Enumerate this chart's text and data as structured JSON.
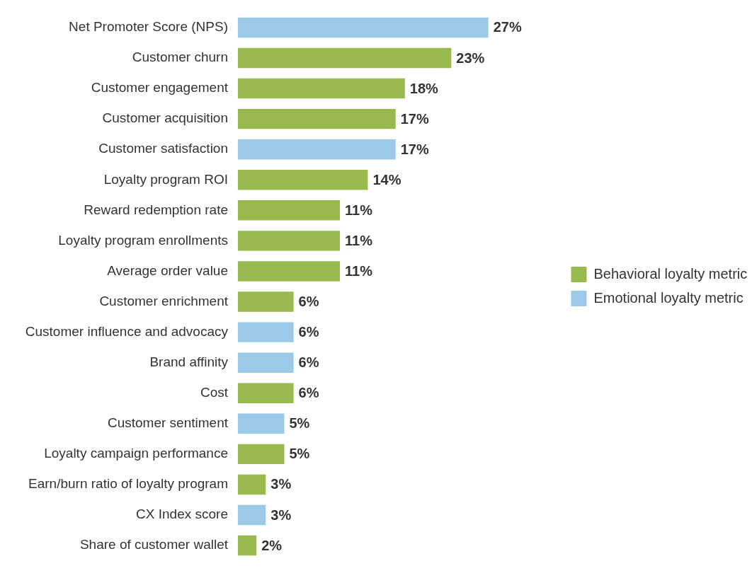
{
  "chart_data": {
    "type": "bar",
    "orientation": "horizontal",
    "stacked": true,
    "categories": [
      "Net Promoter Score (NPS)",
      "Customer churn",
      "Customer engagement",
      "Customer acquisition",
      "Customer satisfaction",
      "Loyalty program ROI",
      "Reward redemption rate",
      "Loyalty program enrollments",
      "Average order value",
      "Customer enrichment",
      "Customer influence and advocacy",
      "Brand affinity",
      "Cost",
      "Customer sentiment",
      "Loyalty campaign performance",
      "Earn/burn ratio of loyalty program",
      "CX Index score",
      "Share of customer wallet"
    ],
    "series": [
      {
        "name": "Behavioral loyalty metric",
        "color": "#97b94e",
        "values": [
          null,
          23,
          18,
          17,
          null,
          14,
          11,
          11,
          11,
          6,
          null,
          null,
          6,
          null,
          5,
          3,
          null,
          2
        ],
        "value_labels": [
          null,
          "23%",
          "18%",
          "17%",
          null,
          "14%",
          "11%",
          "11%",
          "11%",
          "6%",
          null,
          null,
          "6%",
          null,
          "5%",
          "3%",
          null,
          "2%"
        ]
      },
      {
        "name": "Emotional loyalty metric",
        "color": "#9bcae9",
        "values": [
          27,
          null,
          null,
          null,
          17,
          null,
          null,
          null,
          null,
          null,
          6,
          6,
          null,
          5,
          null,
          null,
          3,
          null
        ],
        "value_labels": [
          "27%",
          null,
          null,
          null,
          "17%",
          null,
          null,
          null,
          null,
          null,
          "6%",
          "6%",
          null,
          "5%",
          null,
          null,
          "3%",
          null
        ]
      }
    ],
    "tick_labels": "y",
    "grid": false,
    "legend": "right"
  }
}
